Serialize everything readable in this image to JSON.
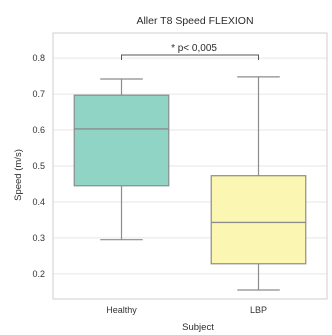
{
  "chart_data": {
    "type": "box",
    "title": "Aller T8 Speed FLEXION",
    "xlabel": "Subject",
    "ylabel": "Speed (m/s)",
    "ylim": [
      0.13,
      0.87
    ],
    "yticks": [
      "0.2",
      "0.3",
      "0.4",
      "0.5",
      "0.6",
      "0.7",
      "0.8"
    ],
    "grid": true,
    "categories": [
      "Healthy",
      "LBP"
    ],
    "boxes": [
      {
        "label": "Healthy",
        "min": 0.295,
        "q1": 0.445,
        "median": 0.603,
        "q3": 0.697,
        "max": 0.742,
        "color": "#8fd4c4",
        "edge": "#8c8c8c"
      },
      {
        "label": "LBP",
        "min": 0.155,
        "q1": 0.228,
        "median": 0.343,
        "q3": 0.473,
        "max": 0.748,
        "color": "#fbf7b2",
        "edge": "#8c8c8c"
      }
    ],
    "annotations": [
      {
        "text": "* p< 0,005",
        "between": [
          "Healthy",
          "LBP"
        ]
      }
    ]
  }
}
